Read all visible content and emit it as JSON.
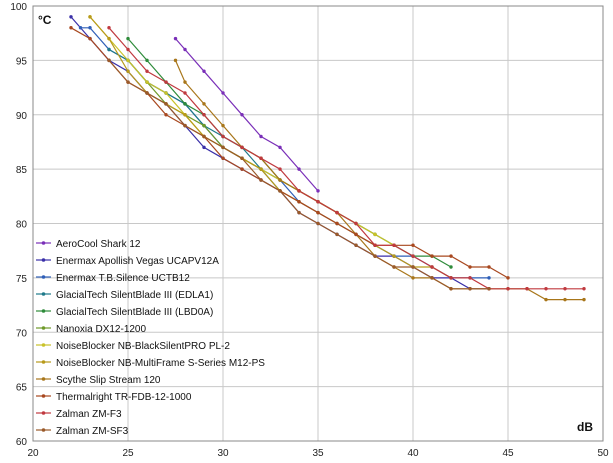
{
  "chart_data": {
    "type": "line",
    "title": "",
    "xlabel": "dB",
    "ylabel": "°C",
    "xlim": [
      20,
      50
    ],
    "ylim": [
      60,
      100
    ],
    "x_ticks": [
      20,
      25,
      30,
      35,
      40,
      45,
      50
    ],
    "y_ticks": [
      60,
      65,
      70,
      75,
      80,
      85,
      90,
      95,
      100
    ],
    "grid": true,
    "legend_position": "left-middle",
    "series": [
      {
        "name": "AeroCool Shark 12",
        "color": "#7a2fb8",
        "points": [
          [
            27.5,
            97
          ],
          [
            28,
            96
          ],
          [
            29,
            94
          ],
          [
            30,
            92
          ],
          [
            31,
            90
          ],
          [
            32,
            88
          ],
          [
            33,
            87
          ],
          [
            34,
            85
          ],
          [
            35,
            83
          ]
        ]
      },
      {
        "name": "Enermax Apollish Vegas UCAPV12A",
        "color": "#3a2fa8",
        "points": [
          [
            22,
            99
          ],
          [
            23,
            97
          ],
          [
            24,
            95
          ],
          [
            25,
            94
          ],
          [
            26,
            92
          ],
          [
            27,
            91
          ],
          [
            28,
            89
          ],
          [
            29,
            87
          ],
          [
            30,
            86
          ],
          [
            31,
            85
          ],
          [
            32,
            84
          ],
          [
            33,
            83
          ],
          [
            34,
            81
          ],
          [
            35,
            80
          ],
          [
            36,
            79
          ],
          [
            37,
            78
          ],
          [
            38,
            77
          ],
          [
            39,
            77
          ],
          [
            40,
            76
          ],
          [
            41,
            75
          ],
          [
            42,
            75
          ],
          [
            43,
            74
          ],
          [
            44,
            74
          ]
        ]
      },
      {
        "name": "Enermax T.B.Silence UCTB12",
        "color": "#2f5fb8",
        "points": [
          [
            22.5,
            98
          ],
          [
            23,
            98
          ],
          [
            24,
            96
          ],
          [
            25,
            95
          ],
          [
            26,
            93
          ],
          [
            27,
            92
          ],
          [
            28,
            91
          ],
          [
            29,
            89
          ],
          [
            30,
            87
          ],
          [
            31,
            86
          ],
          [
            32,
            85
          ],
          [
            33,
            84
          ],
          [
            34,
            82
          ],
          [
            35,
            81
          ],
          [
            36,
            80
          ],
          [
            37,
            79
          ],
          [
            38,
            78
          ],
          [
            39,
            77
          ],
          [
            40,
            77
          ],
          [
            41,
            76
          ],
          [
            42,
            75
          ],
          [
            43,
            75
          ],
          [
            44,
            75
          ]
        ]
      },
      {
        "name": "GlacialTech SilentBlade III (EDLA1)",
        "color": "#1f7a8a",
        "points": [
          [
            24,
            96
          ],
          [
            25,
            95
          ],
          [
            26,
            93
          ],
          [
            27,
            92
          ],
          [
            28,
            91
          ],
          [
            29,
            89
          ],
          [
            30,
            88
          ],
          [
            31,
            87
          ],
          [
            32,
            85
          ],
          [
            33,
            83
          ]
        ]
      },
      {
        "name": "GlacialTech SilentBlade III (LBD0A)",
        "color": "#2e8b3a",
        "points": [
          [
            25,
            97
          ],
          [
            26,
            95
          ],
          [
            27,
            93
          ],
          [
            28,
            91
          ],
          [
            29,
            90
          ],
          [
            30,
            88
          ],
          [
            31,
            87
          ],
          [
            32,
            86
          ],
          [
            33,
            84
          ],
          [
            34,
            83
          ],
          [
            35,
            82
          ],
          [
            36,
            81
          ],
          [
            37,
            80
          ],
          [
            38,
            79
          ],
          [
            39,
            78
          ],
          [
            40,
            77
          ],
          [
            41,
            77
          ],
          [
            42,
            76
          ]
        ]
      },
      {
        "name": "Nanoxia DX12-1200",
        "color": "#6f9a2a",
        "points": [
          [
            25,
            95
          ],
          [
            26,
            93
          ],
          [
            27,
            91
          ],
          [
            28,
            90
          ],
          [
            29,
            89
          ],
          [
            30,
            87
          ],
          [
            31,
            86
          ],
          [
            32,
            85
          ],
          [
            33,
            84
          ],
          [
            34,
            83
          ],
          [
            35,
            82
          ],
          [
            36,
            81
          ],
          [
            37,
            80
          ],
          [
            38,
            79
          ]
        ]
      },
      {
        "name": "NoiseBlocker NB-BlackSilentPRO PL-2",
        "color": "#c9c22a",
        "points": [
          [
            23,
            99
          ],
          [
            24,
            97
          ],
          [
            25,
            95
          ],
          [
            26,
            93
          ],
          [
            27,
            92
          ],
          [
            28,
            90
          ],
          [
            29,
            88
          ],
          [
            30,
            87
          ],
          [
            31,
            86
          ],
          [
            32,
            85
          ],
          [
            33,
            84
          ],
          [
            34,
            83
          ],
          [
            35,
            82
          ],
          [
            36,
            81
          ],
          [
            37,
            80
          ],
          [
            38,
            79
          ],
          [
            39,
            78
          ]
        ]
      },
      {
        "name": "NoiseBlocker NB-MultiFrame S-Series M12-PS",
        "color": "#b89a1a",
        "points": [
          [
            23,
            99
          ],
          [
            24,
            97
          ],
          [
            25,
            94
          ],
          [
            26,
            92
          ],
          [
            27,
            91
          ],
          [
            28,
            90
          ],
          [
            29,
            88
          ],
          [
            30,
            87
          ],
          [
            31,
            86
          ],
          [
            32,
            85
          ],
          [
            33,
            83
          ],
          [
            34,
            82
          ],
          [
            35,
            81
          ],
          [
            36,
            80
          ],
          [
            37,
            79
          ],
          [
            38,
            78
          ],
          [
            39,
            77
          ],
          [
            40,
            76
          ],
          [
            41,
            76
          ],
          [
            42,
            75
          ]
        ]
      },
      {
        "name": "Scythe Slip Stream 120",
        "color": "#a8761a",
        "points": [
          [
            27.5,
            95
          ],
          [
            28,
            93
          ],
          [
            29,
            91
          ],
          [
            30,
            89
          ],
          [
            31,
            87
          ],
          [
            32,
            86
          ],
          [
            33,
            84
          ],
          [
            34,
            83
          ],
          [
            35,
            82
          ],
          [
            36,
            81
          ],
          [
            37,
            79
          ],
          [
            38,
            77
          ],
          [
            39,
            76
          ],
          [
            40,
            75
          ],
          [
            41,
            75
          ],
          [
            42,
            74
          ],
          [
            43,
            74
          ],
          [
            44,
            74
          ],
          [
            45,
            74
          ],
          [
            46,
            74
          ],
          [
            47,
            73
          ],
          [
            48,
            73
          ],
          [
            49,
            73
          ]
        ]
      },
      {
        "name": "Thermalright TR-FDB-12-1000",
        "color": "#a8481f",
        "points": [
          [
            22,
            98
          ],
          [
            23,
            97
          ],
          [
            24,
            95
          ],
          [
            25,
            93
          ],
          [
            26,
            92
          ],
          [
            27,
            90
          ],
          [
            28,
            89
          ],
          [
            29,
            88
          ],
          [
            30,
            86
          ],
          [
            31,
            85
          ],
          [
            32,
            84
          ],
          [
            33,
            83
          ],
          [
            34,
            82
          ],
          [
            35,
            81
          ],
          [
            36,
            80
          ],
          [
            37,
            79
          ],
          [
            38,
            78
          ],
          [
            39,
            78
          ],
          [
            40,
            78
          ],
          [
            41,
            77
          ],
          [
            42,
            77
          ],
          [
            43,
            76
          ],
          [
            44,
            76
          ],
          [
            45,
            75
          ]
        ]
      },
      {
        "name": "Zalman ZM-F3",
        "color": "#c0393f",
        "points": [
          [
            24,
            98
          ],
          [
            25,
            96
          ],
          [
            26,
            94
          ],
          [
            27,
            93
          ],
          [
            28,
            92
          ],
          [
            29,
            90
          ],
          [
            30,
            88
          ],
          [
            31,
            87
          ],
          [
            32,
            86
          ],
          [
            33,
            85
          ],
          [
            34,
            83
          ],
          [
            35,
            82
          ],
          [
            36,
            81
          ],
          [
            37,
            80
          ],
          [
            38,
            78
          ],
          [
            39,
            78
          ],
          [
            40,
            77
          ],
          [
            41,
            76
          ],
          [
            42,
            75
          ],
          [
            43,
            75
          ],
          [
            44,
            74
          ],
          [
            45,
            74
          ],
          [
            46,
            74
          ],
          [
            47,
            74
          ],
          [
            48,
            74
          ],
          [
            49,
            74
          ]
        ]
      },
      {
        "name": "Zalman ZM-SF3",
        "color": "#9a5a2a",
        "points": [
          [
            24,
            95
          ],
          [
            25,
            93
          ],
          [
            26,
            92
          ],
          [
            27,
            91
          ],
          [
            28,
            89
          ],
          [
            29,
            88
          ],
          [
            30,
            87
          ],
          [
            31,
            86
          ],
          [
            32,
            84
          ],
          [
            33,
            83
          ],
          [
            34,
            81
          ],
          [
            35,
            80
          ],
          [
            36,
            79
          ],
          [
            37,
            78
          ],
          [
            38,
            77
          ],
          [
            39,
            76
          ],
          [
            40,
            76
          ],
          [
            41,
            75
          ],
          [
            42,
            74
          ],
          [
            43,
            74
          ],
          [
            44,
            74
          ]
        ]
      }
    ]
  }
}
